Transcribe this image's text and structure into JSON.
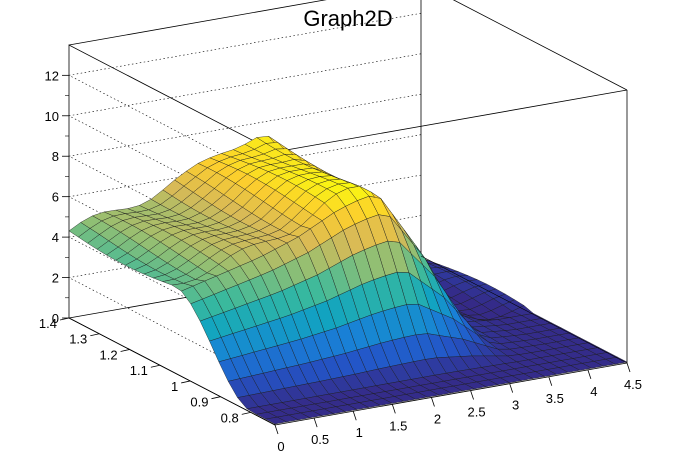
{
  "chart_data": {
    "type": "surface",
    "title": "Graph2D",
    "palette": [
      "#352a87",
      "#2356c8",
      "#1981d6",
      "#12a4c0",
      "#38b99e",
      "#92bf73",
      "#d9ba56",
      "#fcce2e",
      "#f9fb0e"
    ],
    "grid": true,
    "x_axis": {
      "range": [
        0,
        4.5
      ],
      "ticks": [
        0,
        0.5,
        1,
        1.5,
        2,
        2.5,
        3,
        3.5,
        4,
        4.5
      ],
      "tick_labels": [
        "0",
        "0.5",
        "1",
        "1.5",
        "2",
        "2.5",
        "3",
        "3.5",
        "4",
        "4.5"
      ]
    },
    "y_axis": {
      "range": [
        0.72,
        1.4
      ],
      "ticks": [
        0.8,
        0.9,
        1.0,
        1.1,
        1.2,
        1.3,
        1.4
      ],
      "tick_labels": [
        "0.8",
        "0.9",
        "1",
        "1.1",
        "1.2",
        "1.3",
        "1.4"
      ]
    },
    "z_axis": {
      "range": [
        0,
        13.5
      ],
      "ticks": [
        0,
        2,
        4,
        6,
        8,
        10,
        12
      ],
      "tick_labels": [
        "0",
        "2",
        "4",
        "6",
        "8",
        "10",
        "12"
      ]
    },
    "surface_profile": {
      "x_nodes": [
        0,
        0.5,
        1.0,
        1.5,
        2.0,
        2.25,
        2.5,
        3.0,
        3.5,
        4.0,
        4.5
      ],
      "z_high_y": [
        4.3,
        4.8,
        5.3,
        6.0,
        7.0,
        7.3,
        7.5,
        4.5,
        0.3,
        0.05,
        0.05
      ],
      "z_low_y": [
        0.05,
        0.05,
        0.05,
        0.05,
        0.05,
        0.05,
        0.05,
        0.05,
        0.05,
        0.05,
        0.05
      ],
      "wall_y_range": [
        0.8,
        1.05
      ],
      "wall_x_range": [
        0.5,
        2.25
      ]
    }
  }
}
